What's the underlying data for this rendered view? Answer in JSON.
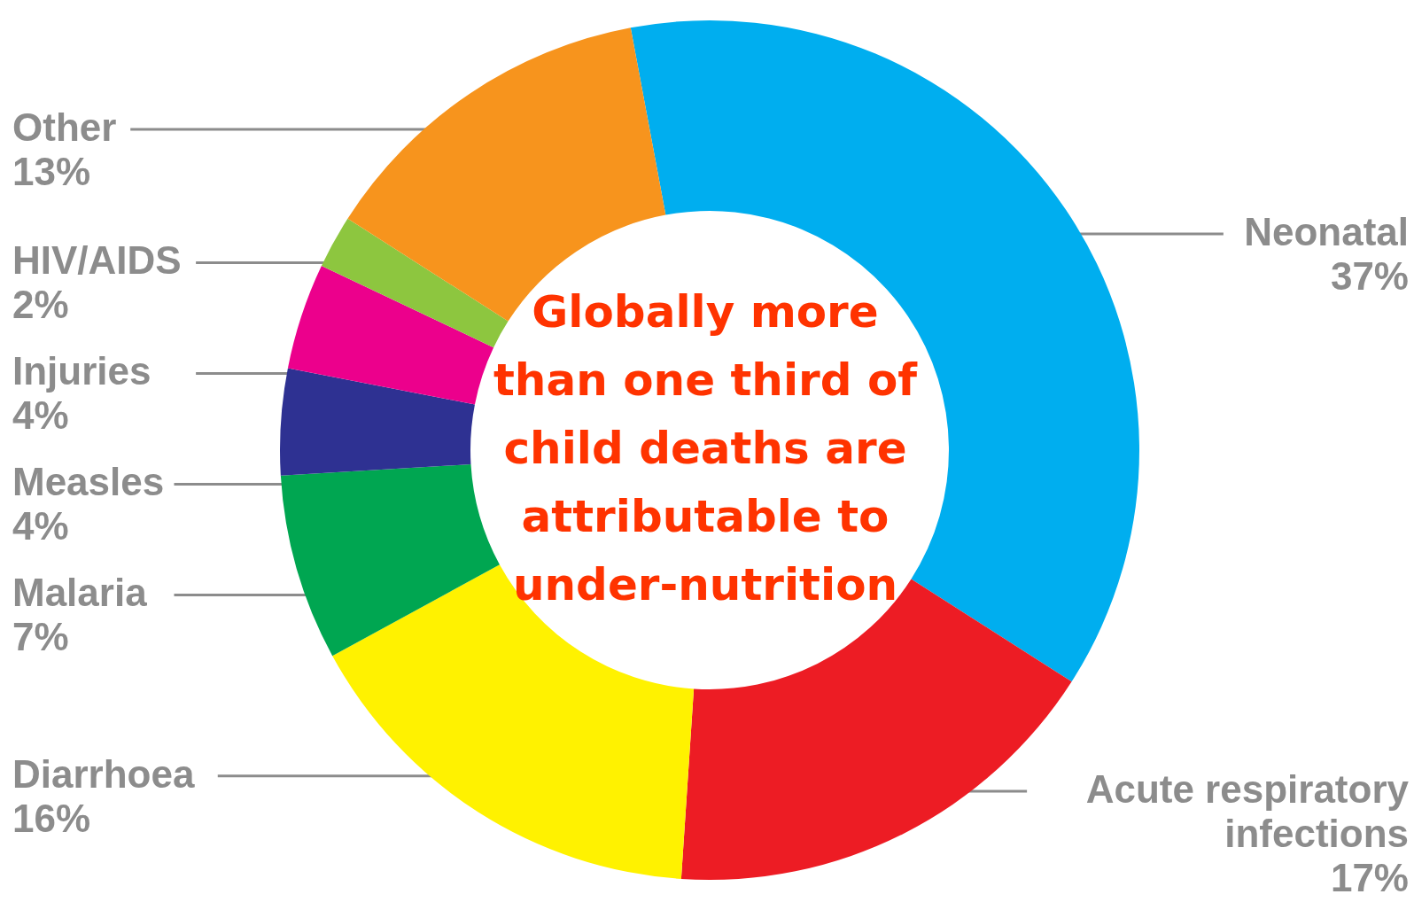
{
  "chart_data": {
    "type": "donut",
    "categories": [
      "Neonatal",
      "Acute respiratory infections",
      "Diarrhoea",
      "Malaria",
      "Measles",
      "Injuries",
      "HIV/AIDS",
      "Other"
    ],
    "values": [
      37,
      17,
      16,
      7,
      4,
      4,
      2,
      13
    ],
    "value_labels": [
      "37%",
      "17%",
      "16%",
      "7%",
      "4%",
      "4%",
      "2%",
      "13%"
    ],
    "colors": [
      "#00aeef",
      "#ed1c24",
      "#fff200",
      "#00a651",
      "#2e3192",
      "#ec008c",
      "#8dc63f",
      "#f7941d"
    ],
    "annotations": [
      "Globally more than one third of child deaths are attributable to under-nutrition"
    ]
  }
}
